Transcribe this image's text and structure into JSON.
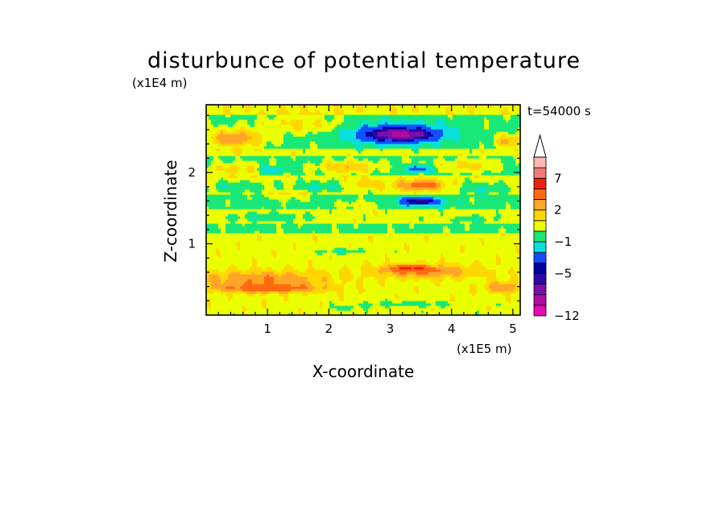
{
  "chart_data": {
    "type": "heatmap",
    "title": "disturbunce of potential temperature",
    "xlabel": "X-coordinate",
    "ylabel": "Z-coordinate",
    "x_unit": "(x1E5 m)",
    "y_unit": "(x1E4 m)",
    "time_label": "t=54000 s",
    "xlim": [
      0,
      5.12
    ],
    "ylim": [
      0,
      2.95
    ],
    "x_ticks": [
      "1",
      "2",
      "3",
      "4",
      "5"
    ],
    "x_tick_values": [
      1,
      2,
      3,
      4,
      5
    ],
    "y_ticks": [
      "1",
      "2"
    ],
    "y_tick_values": [
      1,
      2
    ],
    "grid": false,
    "colorbar": {
      "position": "right",
      "extend": "max",
      "labels": [
        "7",
        "2",
        "−1",
        "−5",
        "−12"
      ],
      "label_values": [
        7,
        2,
        -1,
        -5,
        -12
      ],
      "bins": [
        {
          "lo": -12,
          "hi": -10,
          "color": "#e50ab4"
        },
        {
          "lo": -10,
          "hi": -8,
          "color": "#b50aa0"
        },
        {
          "lo": -8,
          "hi": -6,
          "color": "#7b0fa8"
        },
        {
          "lo": -6,
          "hi": -5,
          "color": "#2a09a6"
        },
        {
          "lo": -5,
          "hi": -4,
          "color": "#0000a0"
        },
        {
          "lo": -4,
          "hi": -2,
          "color": "#0f50ff"
        },
        {
          "lo": -2,
          "hi": -1,
          "color": "#08e0dc"
        },
        {
          "lo": -1,
          "hi": 0,
          "color": "#19e878"
        },
        {
          "lo": 0,
          "hi": 1,
          "color": "#eaff00"
        },
        {
          "lo": 1,
          "hi": 2,
          "color": "#ffd700"
        },
        {
          "lo": 2,
          "hi": 3,
          "color": "#ffa628"
        },
        {
          "lo": 3,
          "hi": 5,
          "color": "#ff6a10"
        },
        {
          "lo": 5,
          "hi": 7,
          "color": "#f01e10"
        },
        {
          "lo": 7,
          "hi": 9,
          "color": "#f07a78"
        },
        {
          "lo": 9,
          "hi": 11,
          "color": "#ffb8b4"
        },
        {
          "lo": 11,
          "hi": null,
          "color": "#ffffff"
        }
      ]
    },
    "blobs": [
      {
        "x": 0.45,
        "z": 2.48,
        "rx": 0.62,
        "rz": 0.16,
        "v": 3.2
      },
      {
        "x": 4.95,
        "z": 2.45,
        "rx": 0.32,
        "rz": 0.12,
        "v": 2.6
      },
      {
        "x": 1.5,
        "z": 2.68,
        "rx": 0.9,
        "rz": 0.16,
        "v": 1.6
      },
      {
        "x": 0.55,
        "z": 2.05,
        "rx": 0.9,
        "rz": 0.12,
        "v": 1.8
      },
      {
        "x": 3.05,
        "z": 2.55,
        "rx": 0.95,
        "rz": 0.2,
        "v": -1.6
      },
      {
        "x": 3.15,
        "z": 2.55,
        "rx": 0.8,
        "rz": 0.14,
        "v": -4.2
      },
      {
        "x": 3.2,
        "z": 2.53,
        "rx": 0.55,
        "rz": 0.09,
        "v": -3.2
      },
      {
        "x": 2.3,
        "z": 2.08,
        "rx": 0.6,
        "rz": 0.12,
        "v": 2.4
      },
      {
        "x": 3.6,
        "z": 2.12,
        "rx": 0.7,
        "rz": 0.11,
        "v": 0.6
      },
      {
        "x": 4.35,
        "z": 2.1,
        "rx": 0.55,
        "rz": 0.12,
        "v": 1.8
      },
      {
        "x": 1.05,
        "z": 2.05,
        "rx": 0.3,
        "rz": 0.07,
        "v": -2.6
      },
      {
        "x": 3.45,
        "z": 2.06,
        "rx": 0.25,
        "rz": 0.06,
        "v": -3.1
      },
      {
        "x": 0.5,
        "z": 1.8,
        "rx": 0.6,
        "rz": 0.1,
        "v": -1.4
      },
      {
        "x": 1.85,
        "z": 1.8,
        "rx": 0.55,
        "rz": 0.1,
        "v": -1.5
      },
      {
        "x": 2.6,
        "z": 1.85,
        "rx": 0.35,
        "rz": 0.08,
        "v": 1.4
      },
      {
        "x": 3.5,
        "z": 1.83,
        "rx": 0.5,
        "rz": 0.1,
        "v": 3.4
      },
      {
        "x": 4.5,
        "z": 1.78,
        "rx": 0.6,
        "rz": 0.1,
        "v": -1.4
      },
      {
        "x": 3.45,
        "z": 1.6,
        "rx": 0.5,
        "rz": 0.09,
        "v": -2.2
      },
      {
        "x": 3.5,
        "z": 1.6,
        "rx": 0.33,
        "rz": 0.05,
        "v": -3.6
      },
      {
        "x": 2.45,
        "z": 1.55,
        "rx": 0.45,
        "rz": 0.06,
        "v": 1.3
      },
      {
        "x": 1.4,
        "z": 1.68,
        "rx": 0.55,
        "rz": 0.08,
        "v": 1.2
      },
      {
        "x": 1.0,
        "z": 1.38,
        "rx": 0.9,
        "rz": 0.08,
        "v": -1.2
      },
      {
        "x": 4.35,
        "z": 1.35,
        "rx": 0.5,
        "rz": 0.07,
        "v": -1.1
      },
      {
        "x": 0.9,
        "z": 0.52,
        "rx": 1.4,
        "rz": 0.14,
        "v": 2.3
      },
      {
        "x": 1.0,
        "z": 0.38,
        "rx": 1.1,
        "rz": 0.08,
        "v": 3.3
      },
      {
        "x": 3.6,
        "z": 0.62,
        "rx": 1.1,
        "rz": 0.12,
        "v": 2.4
      },
      {
        "x": 3.3,
        "z": 0.66,
        "rx": 0.45,
        "rz": 0.06,
        "v": 3.2
      },
      {
        "x": 4.85,
        "z": 0.4,
        "rx": 0.4,
        "rz": 0.1,
        "v": 2.4
      },
      {
        "x": 2.2,
        "z": 0.9,
        "rx": 0.5,
        "rz": 0.05,
        "v": -1.2
      },
      {
        "x": 3.3,
        "z": 0.16,
        "rx": 1.2,
        "rz": 0.05,
        "v": -1.2
      },
      {
        "x": 2.3,
        "z": 0.1,
        "rx": 0.3,
        "rz": 0.04,
        "v": -1.2
      }
    ]
  }
}
